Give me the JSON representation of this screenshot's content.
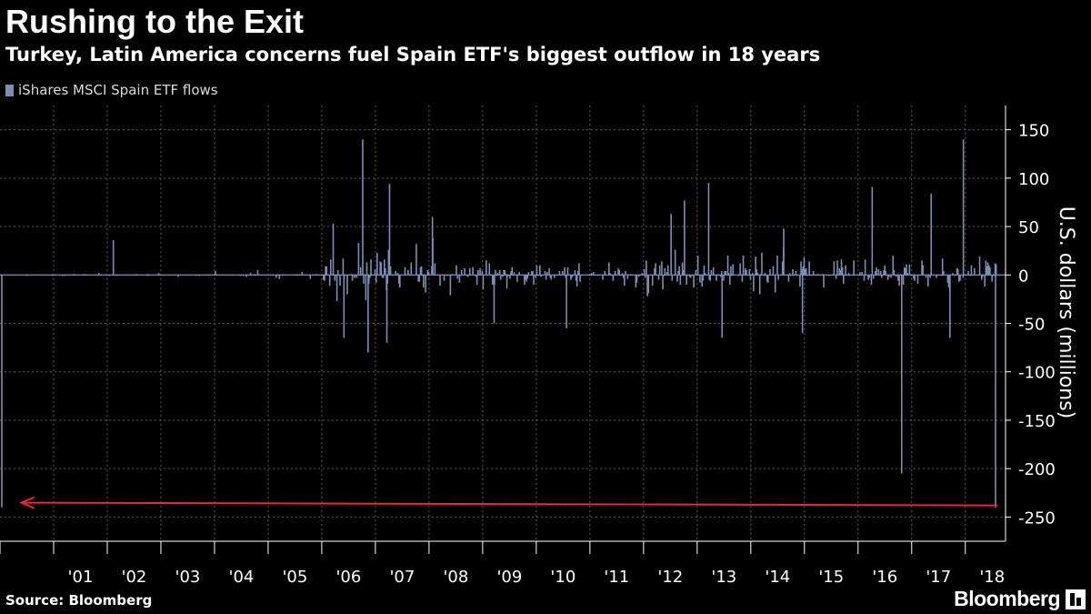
{
  "header": {
    "title": "Rushing to the Exit",
    "subtitle": "Turkey, Latin America concerns fuel Spain ETF's biggest outflow in 18 years"
  },
  "footer": {
    "source": "Source: Bloomberg",
    "brand": "Bloomberg"
  },
  "colors": {
    "background": "#000000",
    "bars": "#7b8fb2",
    "grid": "#5a5a5a",
    "arrow": "#e8283a",
    "text": "#ffffff"
  },
  "chart_data": {
    "type": "bar",
    "legend": "iShares MSCI Spain ETF flows",
    "legend_position": "top-left",
    "ylabel": "U.S. dollars (millions)",
    "ylim": [
      -275,
      175
    ],
    "y_ticks": [
      150,
      100,
      50,
      0,
      -50,
      -100,
      -150,
      -200,
      -250
    ],
    "y_tick_labels": [
      "150",
      "100",
      "50",
      "0",
      "-50",
      "-100",
      "-150",
      "-200",
      "-250"
    ],
    "x_range": [
      2000.0,
      2018.75
    ],
    "x_tick_labels": [
      "'01",
      "'02",
      "'03",
      "'04",
      "'05",
      "'06",
      "'07",
      "'08",
      "'09",
      "'10",
      "'11",
      "'12",
      "'13",
      "'14",
      "'15",
      "'16",
      "'17",
      "'18"
    ],
    "x_tick_positions": [
      2001,
      2002,
      2003,
      2004,
      2005,
      2006,
      2007,
      2008,
      2009,
      2010,
      2011,
      2012,
      2013,
      2014,
      2015,
      2016,
      2017,
      2018
    ],
    "grid": true,
    "annotation": {
      "type": "arrow",
      "from": [
        2018.6,
        -238
      ],
      "to": [
        2000.4,
        -238
      ],
      "text": ""
    },
    "notable_points": [
      {
        "x": 2000.02,
        "y": -240
      },
      {
        "x": 2002.1,
        "y": 36
      },
      {
        "x": 2006.2,
        "y": 53
      },
      {
        "x": 2006.4,
        "y": -65
      },
      {
        "x": 2006.75,
        "y": 140
      },
      {
        "x": 2006.85,
        "y": -80
      },
      {
        "x": 2007.25,
        "y": 94
      },
      {
        "x": 2007.2,
        "y": -70
      },
      {
        "x": 2008.05,
        "y": 60
      },
      {
        "x": 2009.2,
        "y": -50
      },
      {
        "x": 2010.55,
        "y": -55
      },
      {
        "x": 2012.5,
        "y": 63
      },
      {
        "x": 2012.75,
        "y": 77
      },
      {
        "x": 2013.2,
        "y": 95
      },
      {
        "x": 2013.45,
        "y": -65
      },
      {
        "x": 2014.6,
        "y": 48
      },
      {
        "x": 2014.95,
        "y": -60
      },
      {
        "x": 2016.25,
        "y": 91
      },
      {
        "x": 2016.8,
        "y": -205
      },
      {
        "x": 2017.35,
        "y": 84
      },
      {
        "x": 2017.7,
        "y": -65
      },
      {
        "x": 2017.95,
        "y": 140
      },
      {
        "x": 2018.55,
        "y": -240
      }
    ]
  }
}
